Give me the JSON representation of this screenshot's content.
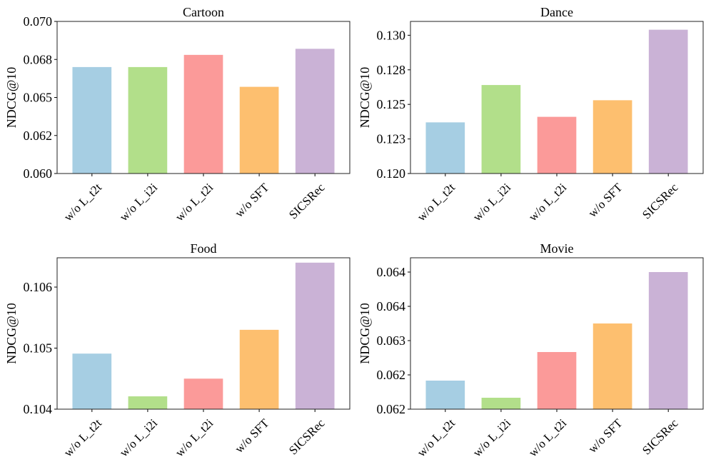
{
  "chart_data": [
    {
      "type": "bar",
      "title": "Cartoon",
      "ylabel": "NDCG@10",
      "categories": [
        "w/o L_t2t",
        "w/o L_i2i",
        "w/o L_t2i",
        "w/o SFT",
        "SICSRec"
      ],
      "values": [
        0.067,
        0.067,
        0.0678,
        0.0657,
        0.0682
      ],
      "ylim": [
        0.06,
        0.07
      ],
      "yticks": [
        0.06,
        0.0625,
        0.065,
        0.0675,
        0.07
      ],
      "ytick_labels": [
        "0.060",
        "0.062",
        "0.065",
        "0.068",
        "0.070"
      ],
      "grid": false
    },
    {
      "type": "bar",
      "title": "Dance",
      "ylabel": "NDCG@10",
      "categories": [
        "w/o L_t2t",
        "w/o L_i2i",
        "w/o L_t2i",
        "w/o SFT",
        "SICSRec"
      ],
      "values": [
        0.1237,
        0.1264,
        0.1241,
        0.1253,
        0.1304
      ],
      "ylim": [
        0.12,
        0.131
      ],
      "yticks": [
        0.12,
        0.1225,
        0.125,
        0.1275,
        0.13
      ],
      "ytick_labels": [
        "0.120",
        "0.123",
        "0.125",
        "0.128",
        "0.130"
      ],
      "grid": false
    },
    {
      "type": "bar",
      "title": "Food",
      "ylabel": "NDCG@10",
      "categories": [
        "w/o L_t2t",
        "w/o L_i2i",
        "w/o L_t2i",
        "w/o SFT",
        "SICSRec"
      ],
      "values": [
        0.10491,
        0.10421,
        0.1045,
        0.1053,
        0.1064
      ],
      "ylim": [
        0.104,
        0.10648
      ],
      "yticks": [
        0.104,
        0.105,
        0.106
      ],
      "ytick_labels": [
        "0.104",
        "0.105",
        "0.106"
      ],
      "grid": false
    },
    {
      "type": "bar",
      "title": "Movie",
      "ylabel": "NDCG@10",
      "categories": [
        "w/o L_t2t",
        "w/o L_i2i",
        "w/o L_t2i",
        "w/o SFT",
        "SICSRec"
      ],
      "values": [
        0.0623,
        0.062,
        0.0628,
        0.0633,
        0.0642
      ],
      "ylim": [
        0.0618,
        0.06445
      ],
      "yticks": [
        0.0618,
        0.0624,
        0.063,
        0.0636,
        0.0642
      ],
      "ytick_labels": [
        "0.062",
        "0.062",
        "0.063",
        "0.064",
        "0.064"
      ],
      "grid": false
    }
  ],
  "colors": [
    "#a6cee3",
    "#b2df8a",
    "#fb9a99",
    "#fdbf6f",
    "#cab2d6"
  ]
}
